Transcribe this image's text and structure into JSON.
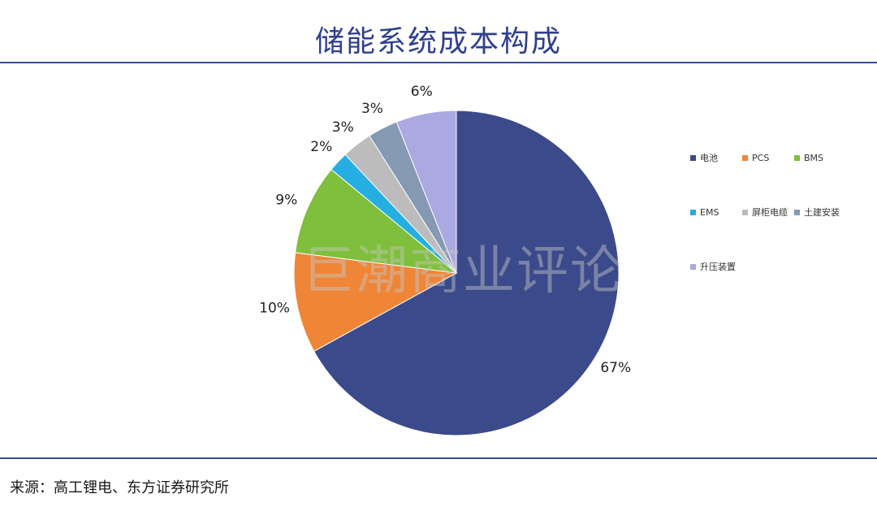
{
  "title": "储能系统成本构成",
  "source": "来源：高工锂电、东方证券研究所",
  "watermark": "巨潮商业评论",
  "chart_data": {
    "type": "pie",
    "title": "储能系统成本构成",
    "slices": [
      {
        "name": "电池",
        "value": 67,
        "label": "67%",
        "color": "#3b4a8b"
      },
      {
        "name": "PCS",
        "value": 10,
        "label": "10%",
        "color": "#ef8537"
      },
      {
        "name": "BMS",
        "value": 9,
        "label": "9%",
        "color": "#7fbf3b"
      },
      {
        "name": "EMS",
        "value": 2,
        "label": "2%",
        "color": "#26aee2"
      },
      {
        "name": "屏柜电缆",
        "value": 3,
        "label": "3%",
        "color": "#bcbcbc"
      },
      {
        "name": "土建安装",
        "value": 3,
        "label": "3%",
        "color": "#8699b3"
      },
      {
        "name": "升压装置",
        "value": 6,
        "label": "6%",
        "color": "#aaa9e1"
      }
    ],
    "start": "12 o'clock",
    "direction": "clockwise",
    "legend_position": "right"
  }
}
